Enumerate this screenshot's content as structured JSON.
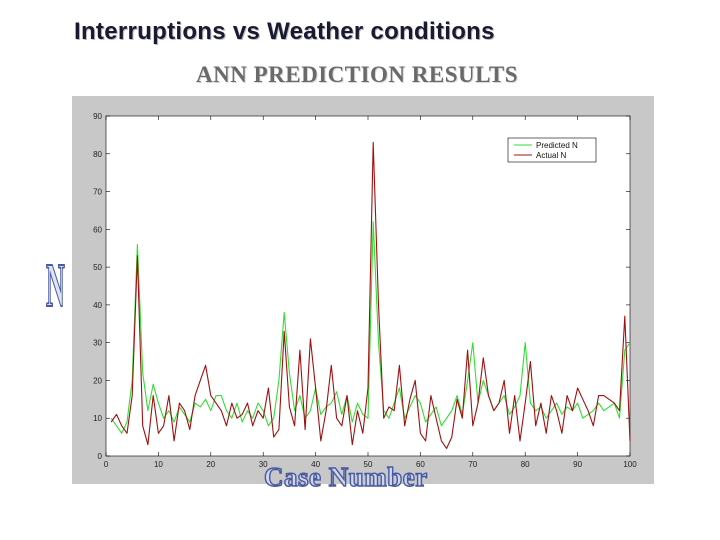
{
  "header": {
    "title": "Interruptions vs Weather conditions",
    "subtitle": "ANN PREDICTION RESULTS"
  },
  "colors": {
    "predicted": "#33dd33",
    "actual": "#a01010",
    "frame": "#c8c8c8",
    "axis_label_fill": "#ccd8ee",
    "axis_label_stroke": "#4a5aa0"
  },
  "chart_data": {
    "type": "line",
    "title": "ANN PREDICTION RESULTS",
    "xlabel": "Case Number",
    "ylabel": "N",
    "xlim": [
      0,
      100
    ],
    "ylim": [
      0,
      90
    ],
    "xticks": [
      0,
      10,
      20,
      30,
      40,
      50,
      60,
      70,
      80,
      90,
      100
    ],
    "yticks": [
      0,
      10,
      20,
      30,
      40,
      50,
      60,
      70,
      80,
      90
    ],
    "grid": false,
    "legend_position": "top-right",
    "x": [
      1,
      2,
      3,
      4,
      5,
      6,
      7,
      8,
      9,
      10,
      11,
      12,
      13,
      14,
      15,
      16,
      17,
      18,
      19,
      20,
      21,
      22,
      23,
      24,
      25,
      26,
      27,
      28,
      29,
      30,
      31,
      32,
      33,
      34,
      35,
      36,
      37,
      38,
      39,
      40,
      41,
      42,
      43,
      44,
      45,
      46,
      47,
      48,
      49,
      50,
      51,
      52,
      53,
      54,
      55,
      56,
      57,
      58,
      59,
      60,
      61,
      62,
      63,
      64,
      65,
      66,
      67,
      68,
      69,
      70,
      71,
      72,
      73,
      74,
      75,
      76,
      77,
      78,
      79,
      80,
      81,
      82,
      83,
      84,
      85,
      86,
      87,
      88,
      89,
      90,
      91,
      92,
      93,
      94,
      95,
      96,
      97,
      98,
      99,
      100
    ],
    "series": [
      {
        "name": "Predicted N",
        "color": "#33dd33",
        "values": [
          10,
          8,
          6,
          9,
          20,
          56,
          22,
          12,
          19,
          14,
          10,
          12,
          9,
          13,
          11,
          9,
          14,
          13,
          15,
          12,
          16,
          16,
          12,
          10,
          14,
          9,
          12,
          10,
          14,
          12,
          8,
          10,
          20,
          38,
          22,
          12,
          16,
          10,
          12,
          18,
          11,
          13,
          14,
          17,
          11,
          16,
          9,
          14,
          11,
          10,
          62,
          30,
          12,
          10,
          14,
          18,
          10,
          13,
          16,
          14,
          9,
          11,
          13,
          8,
          10,
          12,
          16,
          11,
          20,
          30,
          14,
          20,
          16,
          12,
          14,
          16,
          11,
          13,
          16,
          30,
          14,
          12,
          13,
          10,
          12,
          14,
          11,
          13,
          12,
          14,
          10,
          11,
          12,
          14,
          12,
          13,
          14,
          10,
          28,
          30
        ]
      },
      {
        "name": "Actual N",
        "color": "#a01010",
        "values": [
          9,
          11,
          8,
          6,
          16,
          53,
          8,
          3,
          16,
          6,
          8,
          16,
          4,
          14,
          12,
          7,
          16,
          20,
          24,
          16,
          14,
          12,
          8,
          14,
          10,
          11,
          14,
          8,
          12,
          10,
          18,
          5,
          7,
          33,
          13,
          8,
          28,
          7,
          31,
          18,
          4,
          12,
          24,
          10,
          8,
          16,
          3,
          12,
          6,
          18,
          83,
          40,
          10,
          13,
          12,
          24,
          8,
          15,
          20,
          6,
          4,
          16,
          10,
          4,
          2,
          5,
          15,
          10,
          28,
          8,
          14,
          26,
          16,
          12,
          14,
          20,
          6,
          16,
          4,
          14,
          25,
          8,
          14,
          6,
          16,
          12,
          6,
          16,
          12,
          18,
          15,
          12,
          8,
          16,
          16,
          15,
          14,
          12,
          37,
          4
        ]
      }
    ]
  }
}
